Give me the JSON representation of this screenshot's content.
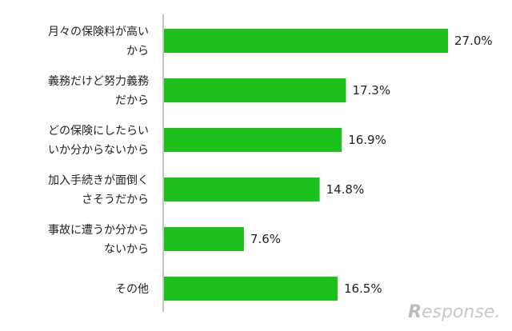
{
  "chart_data": {
    "type": "bar",
    "orientation": "horizontal",
    "categories": [
      [
        "月々の保険料が高い",
        "から"
      ],
      [
        "義務だけど努力義務",
        "だから"
      ],
      [
        "どの保険にしたらい",
        "いか分からないから"
      ],
      [
        "加入手続きが面倒く",
        "さそうだから"
      ],
      [
        "事故に遭うか分から",
        "ないから"
      ],
      [
        "その他"
      ]
    ],
    "values": [
      27.0,
      17.3,
      16.9,
      14.8,
      7.6,
      16.5
    ],
    "value_labels": [
      "27.0%",
      "17.3%",
      "16.9%",
      "14.8%",
      "7.6%",
      "16.5%"
    ],
    "xlim": [
      0,
      30
    ],
    "unit": "%",
    "bar_color": "#1cc11c",
    "grid": false,
    "legend": "none"
  },
  "watermark": {
    "text": "Response."
  }
}
